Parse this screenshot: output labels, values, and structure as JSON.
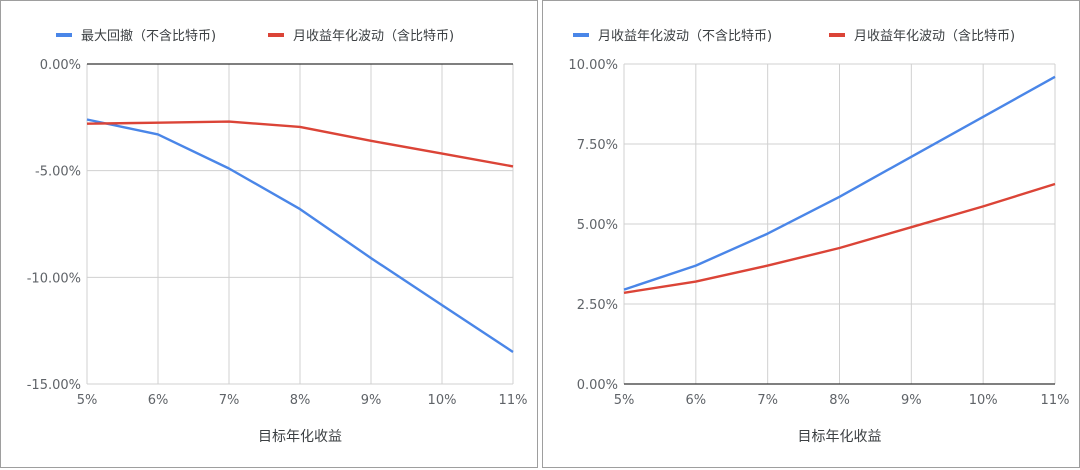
{
  "chart_data": [
    {
      "type": "line",
      "xlabel": "目标年化收益",
      "ylabel": "",
      "x": [
        "5%",
        "6%",
        "7%",
        "8%",
        "9%",
        "10%",
        "11%"
      ],
      "ylim": [
        -15,
        0
      ],
      "yticks": [
        "0.00%",
        "-5.00%",
        "-10.00%",
        "-15.00%"
      ],
      "ytick_values": [
        0,
        -5,
        -10,
        -15
      ],
      "grid": true,
      "legend": "top",
      "series": [
        {
          "name": "最大回撤（不含比特币)",
          "color": "#4a86e8",
          "values": [
            -2.6,
            -3.3,
            -4.9,
            -6.8,
            -9.1,
            -11.3,
            -13.5
          ]
        },
        {
          "name": "月收益年化波动（含比特币)",
          "color": "#db4437",
          "values": [
            -2.8,
            -2.75,
            -2.7,
            -2.95,
            -3.6,
            -4.2,
            -4.8
          ]
        }
      ]
    },
    {
      "type": "line",
      "xlabel": "目标年化收益",
      "ylabel": "",
      "x": [
        "5%",
        "6%",
        "7%",
        "8%",
        "9%",
        "10%",
        "11%"
      ],
      "ylim": [
        0,
        10
      ],
      "yticks": [
        "10.00%",
        "7.50%",
        "5.00%",
        "2.50%",
        "0.00%"
      ],
      "ytick_values": [
        10,
        7.5,
        5,
        2.5,
        0
      ],
      "grid": true,
      "legend": "top",
      "series": [
        {
          "name": "月收益年化波动（不含比特币)",
          "color": "#4a86e8",
          "values": [
            2.95,
            3.7,
            4.7,
            5.85,
            7.1,
            8.35,
            9.6
          ]
        },
        {
          "name": "月收益年化波动（含比特币)",
          "color": "#db4437",
          "values": [
            2.85,
            3.2,
            3.7,
            4.25,
            4.9,
            5.55,
            6.25
          ]
        }
      ]
    }
  ]
}
